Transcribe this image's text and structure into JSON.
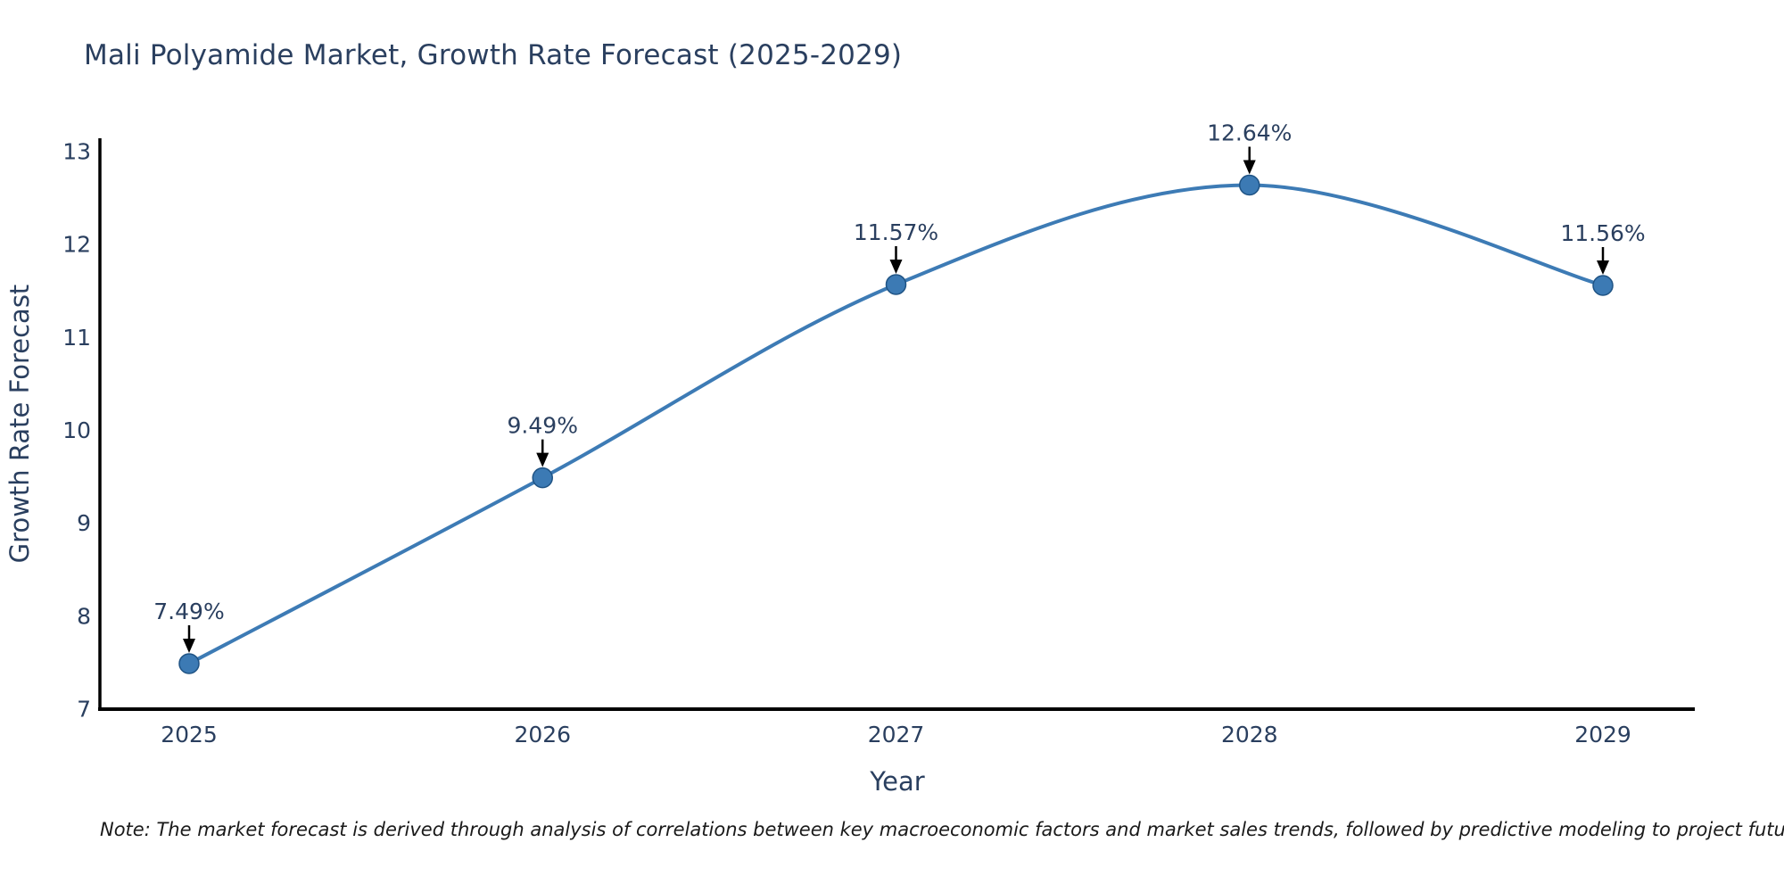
{
  "title": "Mali Polyamide Market, Growth Rate Forecast (2025-2029)",
  "note": "Note: The market forecast is derived through analysis of correlations between key macroeconomic factors and market sales trends, followed by predictive modeling to project future sales",
  "chart_data": {
    "type": "line",
    "line_shape": "spline",
    "x": [
      "2025",
      "2026",
      "2027",
      "2028",
      "2029"
    ],
    "values": [
      7.49,
      9.49,
      11.57,
      12.64,
      11.56
    ],
    "point_labels": [
      "7.49%",
      "9.49%",
      "11.57%",
      "12.64%",
      "11.56%"
    ],
    "title": "Mali Polyamide Market, Growth Rate Forecast (2025-2029)",
    "xlabel": "Year",
    "ylabel": "Growth Rate Forecast",
    "ylim": [
      7,
      13
    ],
    "yticks": [
      7,
      8,
      9,
      10,
      11,
      12,
      13
    ],
    "grid": false,
    "legend": false,
    "colors": {
      "line": "#3d7bb5",
      "marker_fill": "#3c7ab4",
      "marker_edge": "#1f5384",
      "arrow": "#000000",
      "chart_text": "#2a3f5f",
      "axis_line": "#000000",
      "note_text": "#1a1a1a",
      "background": "#ffffff"
    }
  }
}
